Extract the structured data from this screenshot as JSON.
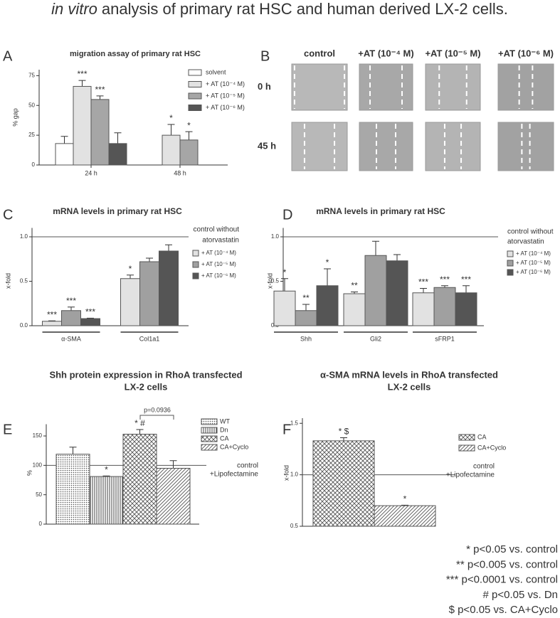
{
  "title": {
    "italic": "in vitro",
    "text": "analysis of primary rat HSC and human derived LX-2 cells."
  },
  "panel_b": {
    "panel": "B",
    "columns": [
      "control",
      "+AT (10⁻⁴ M)",
      "+AT (10⁻⁵ M)",
      "+AT (10⁻⁶ M)"
    ],
    "rows": [
      "0 h",
      "45 h"
    ]
  },
  "chart_data": [
    {
      "panel": "A",
      "type": "bar",
      "title": "migration assay of primary rat HSC",
      "y_label": "% gap",
      "categories": [
        "24 h",
        "48 h"
      ],
      "ylim": [
        0,
        80
      ],
      "yticks": [
        0,
        25,
        50,
        75
      ],
      "series": [
        {
          "name": "solvent",
          "color": "#ffffff",
          "values": [
            18,
            null
          ],
          "errors": [
            6,
            null
          ],
          "significance": [
            null,
            null
          ]
        },
        {
          "name": "+ AT (10⁻⁴ M)",
          "color": "#e2e2e2",
          "values": [
            66,
            25
          ],
          "errors": [
            5,
            9
          ],
          "significance": [
            "***",
            "*"
          ]
        },
        {
          "name": "+ AT (10⁻⁵ M)",
          "color": "#a6a6a6",
          "values": [
            55,
            21
          ],
          "errors": [
            3,
            7
          ],
          "significance": [
            "***",
            "*"
          ]
        },
        {
          "name": "+ AT (10⁻⁶ M)",
          "color": "#555555",
          "values": [
            18,
            null
          ],
          "errors": [
            9,
            null
          ],
          "significance": [
            null,
            null
          ]
        }
      ]
    },
    {
      "panel": "C",
      "type": "bar",
      "title": "mRNA levels in primary rat HSC",
      "y_label": "x-fold",
      "categories": [
        "α-SMA",
        "Col1a1"
      ],
      "ylim": [
        0,
        1.1
      ],
      "yticks": [
        {
          "value": 0,
          "label": "0.0"
        },
        {
          "value": 0.5,
          "label": "0.5"
        },
        {
          "value": 1,
          "label": "1.0"
        }
      ],
      "reference": {
        "value": 1,
        "label": [
          "control without",
          "atorvastatin"
        ]
      },
      "series": [
        {
          "name": "+ AT (10⁻⁴ M)",
          "color": "#e2e2e2",
          "values": [
            0.05,
            0.53
          ],
          "errors": [
            0.005,
            0.04
          ],
          "significance": [
            "***",
            "*"
          ]
        },
        {
          "name": "+ AT (10⁻⁵ M)",
          "color": "#a0a0a0",
          "values": [
            0.17,
            0.72
          ],
          "errors": [
            0.04,
            0.04
          ],
          "significance": [
            "***",
            null
          ]
        },
        {
          "name": "+ AT (10⁻⁶ M)",
          "color": "#555555",
          "values": [
            0.08,
            0.84
          ],
          "errors": [
            0.005,
            0.07
          ],
          "significance": [
            "***",
            null
          ]
        }
      ]
    },
    {
      "panel": "D",
      "type": "bar",
      "title": "mRNA levels in primary rat HSC",
      "y_label": "x-fold",
      "categories": [
        "Shh",
        "Gli2",
        "sFRP1"
      ],
      "ylim": [
        0,
        1.1
      ],
      "yticks": [
        {
          "value": 0,
          "label": "0.0"
        },
        {
          "value": 0.5,
          "label": "0.5"
        },
        {
          "value": 1,
          "label": "1.0"
        }
      ],
      "reference": {
        "value": 1,
        "label": [
          "control without",
          "atorvastatin"
        ]
      },
      "series": [
        {
          "name": "+ AT (10⁻⁴ M)",
          "color": "#e2e2e2",
          "values": [
            0.39,
            0.36,
            0.37
          ],
          "errors": [
            0.14,
            0.02,
            0.05
          ],
          "significance": [
            "*",
            "**",
            "***"
          ]
        },
        {
          "name": "+ AT (10⁻⁵ M)",
          "color": "#a0a0a0",
          "values": [
            0.17,
            0.79,
            0.43
          ],
          "errors": [
            0.07,
            0.16,
            0.02
          ],
          "significance": [
            "**",
            null,
            "***"
          ]
        },
        {
          "name": "+ AT (10⁻⁶ M)",
          "color": "#555555",
          "values": [
            0.45,
            0.73,
            0.37
          ],
          "errors": [
            0.19,
            0.07,
            0.08
          ],
          "significance": [
            "*",
            null,
            "***"
          ]
        }
      ]
    },
    {
      "panel": "E",
      "type": "bar",
      "title": [
        "Shh protein expression in RhoA transfected",
        "LX-2 cells"
      ],
      "y_label": "%",
      "ylim": [
        0,
        170
      ],
      "yticks": [
        0,
        50,
        100,
        150
      ],
      "reference": {
        "value": 100,
        "label": [
          "control",
          "+Lipofectamine"
        ]
      },
      "annotations": [
        "p=0.0936"
      ],
      "series": [
        {
          "name": "WT",
          "pattern": "dots",
          "values": [
            119
          ],
          "errors": [
            12
          ],
          "significance": [
            null
          ]
        },
        {
          "name": "Dn",
          "pattern": "vertical",
          "values": [
            81
          ],
          "errors": [
            1
          ],
          "significance": [
            "*"
          ]
        },
        {
          "name": "CA",
          "pattern": "crosshatch",
          "values": [
            153
          ],
          "errors": [
            8
          ],
          "significance": [
            "* #"
          ]
        },
        {
          "name": "CA+Cyclo",
          "pattern": "diagonal",
          "values": [
            95
          ],
          "errors": [
            13
          ],
          "significance": [
            null
          ]
        }
      ]
    },
    {
      "panel": "F",
      "type": "bar",
      "title": [
        "α-SMA mRNA levels in RhoA transfected",
        "LX-2 cells"
      ],
      "y_label": "x-fold",
      "ylim": [
        0.5,
        1.55
      ],
      "yticks": [
        {
          "value": 0.5,
          "label": "0.5"
        },
        {
          "value": 1,
          "label": "1.0"
        },
        {
          "value": 1.5,
          "label": "1.5"
        }
      ],
      "reference": {
        "value": 1,
        "label": [
          "control",
          "+Lipofectamine"
        ]
      },
      "series": [
        {
          "name": "CA",
          "pattern": "crosshatch",
          "values": [
            1.33
          ],
          "errors": [
            0.03
          ],
          "significance": [
            "* $"
          ]
        },
        {
          "name": "CA+Cyclo",
          "pattern": "diagonal",
          "values": [
            0.7
          ],
          "errors": [
            0.005
          ],
          "significance": [
            "*"
          ]
        }
      ]
    }
  ],
  "footnotes": [
    "* p<0.05 vs. control",
    "** p<0.005 vs. control",
    "*** p<0.0001 vs. control",
    "# p<0.05 vs. Dn",
    "$ p<0.05 vs. CA+Cyclo"
  ]
}
